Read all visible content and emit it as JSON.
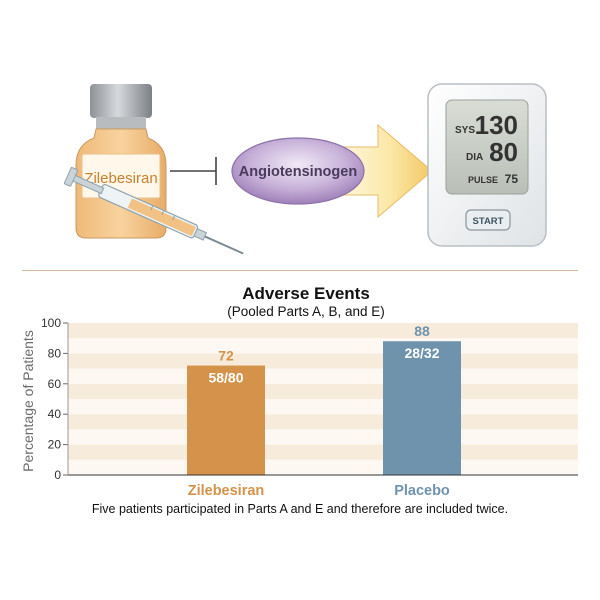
{
  "illustration": {
    "vial_label": "Zilebesiran",
    "target_label": "Angiotensinogen",
    "monitor": {
      "sys_label": "SYS",
      "sys_value": "130",
      "dia_label": "DIA",
      "dia_value": "80",
      "pulse_label": "PULSE",
      "pulse_value": "75",
      "start_label": "START"
    },
    "colors": {
      "vial_liquid": "#f4c888",
      "oval": "#a88bc0",
      "arrow": "#f2c862",
      "screen": "#c9cec7"
    }
  },
  "chart_data": {
    "type": "bar",
    "title": "Adverse Events",
    "subtitle": "(Pooled Parts A, B, and E)",
    "ylabel": "Percentage of Patients",
    "xlabel": "",
    "ylim": [
      0,
      100
    ],
    "yticks": [
      "0",
      "20",
      "40",
      "60",
      "80",
      "100"
    ],
    "categories": [
      "Zilebesiran",
      "Placebo"
    ],
    "values": [
      72,
      88
    ],
    "value_labels": [
      "72",
      "88"
    ],
    "fraction_labels": [
      "58/80",
      "28/32"
    ],
    "colors": [
      "#d4924a",
      "#6f93ad"
    ],
    "grid": "alternating horizontal bands",
    "footnote": "Five patients participated in Parts A and E and therefore are included twice."
  }
}
